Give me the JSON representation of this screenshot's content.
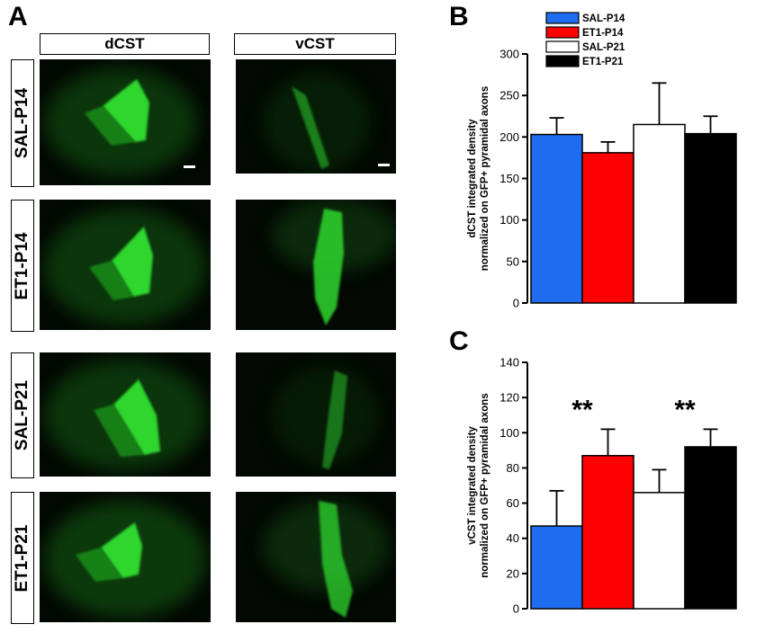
{
  "panels": {
    "a": "A",
    "b": "B",
    "c": "C"
  },
  "columns": [
    "dCST",
    "vCST"
  ],
  "rows": [
    "SAL-P14",
    "ET1-P14",
    "SAL-P21",
    "ET1-P21"
  ],
  "colors": {
    "SAL-P14": "#1f6cf0",
    "ET1-P14": "#ff0000",
    "SAL-P21": "#ffffff",
    "ET1-P21": "#000000",
    "fluorescence": "#22c822"
  },
  "legend": [
    "SAL-P14",
    "ET1-P14",
    "SAL-P21",
    "ET1-P21"
  ],
  "chart_data": [
    {
      "type": "bar",
      "panel": "B",
      "categories": [
        "SAL-P14",
        "ET1-P14",
        "SAL-P21",
        "ET1-P21"
      ],
      "values": [
        203,
        181,
        215,
        204
      ],
      "errors": [
        20,
        13,
        50,
        21
      ],
      "ylabel": "dCST integrated density normalized on GFP+ pyramidal axons",
      "ylabel_lines": [
        "dCST integrated density",
        "normalized on GFP+ pyramidal axons"
      ],
      "ylim": [
        0,
        300
      ],
      "yticks": [
        0,
        50,
        100,
        150,
        200,
        250,
        300
      ],
      "legend": "top-left",
      "grid": false,
      "significance": []
    },
    {
      "type": "bar",
      "panel": "C",
      "categories": [
        "SAL-P14",
        "ET1-P14",
        "SAL-P21",
        "ET1-P21"
      ],
      "values": [
        47,
        87,
        66,
        92
      ],
      "errors": [
        20,
        15,
        13,
        10
      ],
      "ylabel": "vCST integrated density normalized on GFP+ pyramidal axons",
      "ylabel_lines": [
        "vCST integrated density",
        "normalized on GFP+ pyramidal axons"
      ],
      "ylim": [
        0,
        140
      ],
      "yticks": [
        0,
        20,
        40,
        60,
        80,
        100,
        120,
        140
      ],
      "grid": false,
      "significance": [
        {
          "label": "**",
          "between": [
            0,
            1
          ]
        },
        {
          "label": "**",
          "between": [
            2,
            3
          ]
        }
      ]
    }
  ]
}
